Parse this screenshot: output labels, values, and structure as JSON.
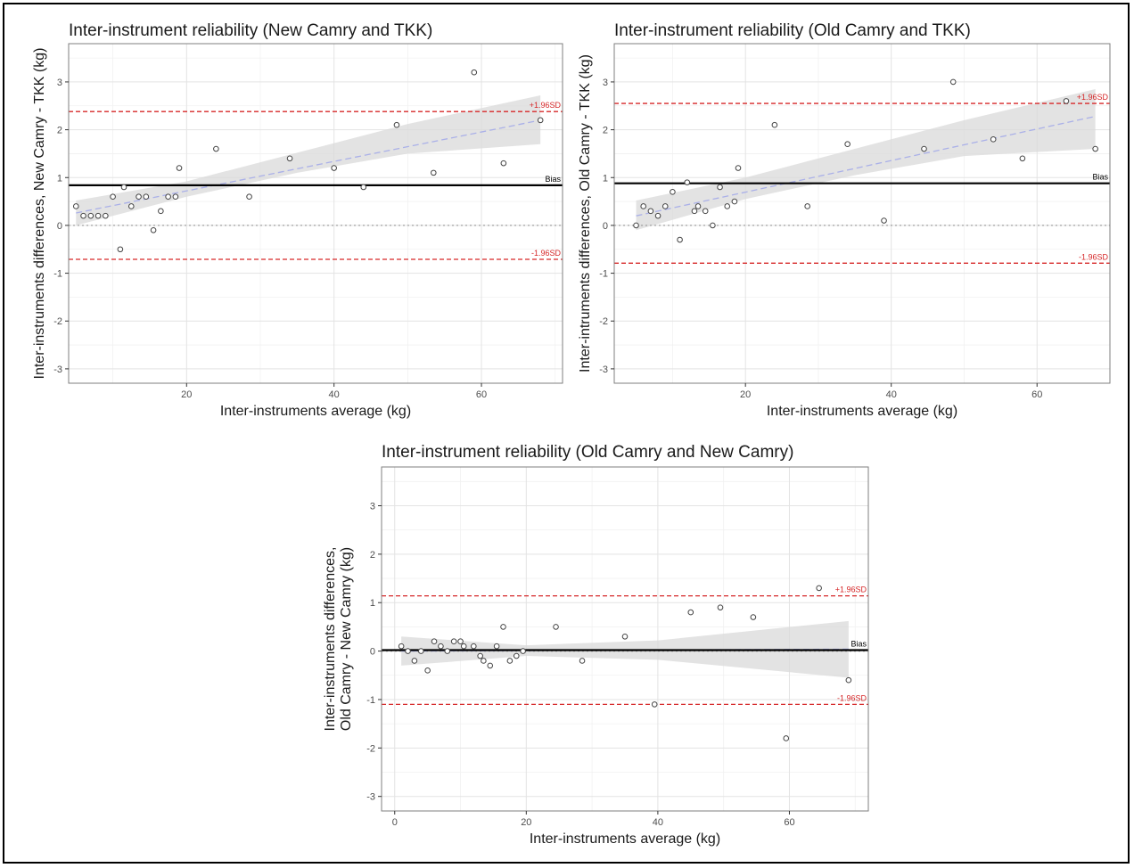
{
  "colors": {
    "limit": "#d62728",
    "bias": "#000000",
    "zero": "#999999",
    "trend": "#aab0e8",
    "band": "#d9d9d9",
    "point": "#444444",
    "grid_major": "#e3e3e3",
    "grid_minor": "#f1f1f1",
    "panel_border": "#7f7f7f"
  },
  "chart_data": [
    {
      "type": "scatter",
      "title": "Inter-instrument reliability (New Camry and TKK)",
      "xlabel": "Inter-instruments average (kg)",
      "ylabel": [
        "Inter-instruments differences, New Camry - TKK (kg)"
      ],
      "xlim": [
        4,
        71
      ],
      "ylim": [
        -3.3,
        3.8
      ],
      "xticks": [
        20,
        40,
        60
      ],
      "yticks": [
        -3,
        -2,
        -1,
        0,
        1,
        2,
        3
      ],
      "bias": 0.84,
      "upper_loa": 2.38,
      "lower_loa": -0.71,
      "bias_label": "Bias",
      "upper_label": "+1.96SD",
      "lower_label": "-1.96SD",
      "trend": {
        "x": [
          5,
          68
        ],
        "y": [
          0.26,
          2.2
        ]
      },
      "band": {
        "x": [
          5,
          20,
          35,
          50,
          68
        ],
        "upper": [
          0.52,
          0.92,
          1.52,
          2.12,
          2.72
        ],
        "lower": [
          0.0,
          0.6,
          1.1,
          1.5,
          1.7
        ]
      },
      "x": [
        5,
        6,
        7,
        8,
        9,
        10,
        11,
        11.5,
        12.5,
        13.5,
        14.5,
        15.5,
        16.5,
        17.5,
        18.5,
        19,
        24,
        28.5,
        34,
        40,
        44,
        48.5,
        53.5,
        59,
        63,
        68
      ],
      "y": [
        0.4,
        0.2,
        0.2,
        0.2,
        0.2,
        0.6,
        -0.5,
        0.8,
        0.4,
        0.6,
        0.6,
        -0.1,
        0.3,
        0.6,
        0.6,
        1.2,
        1.6,
        0.6,
        1.4,
        1.2,
        0.8,
        2.1,
        1.1,
        3.2,
        1.3,
        2.2
      ]
    },
    {
      "type": "scatter",
      "title": "Inter-instrument reliability (Old Camry and TKK)",
      "xlabel": "Inter-instruments average (kg)",
      "ylabel": [
        "Inter-intruments differences, Old Camry - TKK (kg)"
      ],
      "xlim": [
        2,
        70
      ],
      "ylim": [
        -3.3,
        3.8
      ],
      "xticks": [
        20,
        40,
        60
      ],
      "yticks": [
        -3,
        -2,
        -1,
        0,
        1,
        2,
        3
      ],
      "bias": 0.88,
      "upper_loa": 2.55,
      "lower_loa": -0.79,
      "bias_label": "Bias",
      "upper_label": "+1.96SD",
      "lower_label": "-1.96SD",
      "trend": {
        "x": [
          5,
          68
        ],
        "y": [
          0.2,
          2.28
        ]
      },
      "band": {
        "x": [
          5,
          20,
          35,
          50,
          68
        ],
        "upper": [
          0.52,
          1.0,
          1.6,
          2.2,
          2.85
        ],
        "lower": [
          -0.1,
          0.55,
          1.05,
          1.45,
          1.6
        ]
      },
      "x": [
        5,
        6,
        7,
        8,
        9,
        10,
        11,
        12,
        13,
        13.5,
        14.5,
        15.5,
        16.5,
        17.5,
        18.5,
        19,
        24,
        28.5,
        34,
        39,
        44.5,
        48.5,
        54,
        58,
        64,
        68
      ],
      "y": [
        0.0,
        0.4,
        0.3,
        0.2,
        0.4,
        0.7,
        -0.3,
        0.9,
        0.3,
        0.4,
        0.3,
        0.0,
        0.8,
        0.4,
        0.5,
        1.2,
        2.1,
        0.4,
        1.7,
        0.1,
        1.6,
        3.0,
        1.8,
        1.4,
        2.6,
        1.6
      ]
    },
    {
      "type": "scatter",
      "title": "Inter-instrument reliability (Old Camry and New Camry)",
      "xlabel": "Inter-instruments average (kg)",
      "ylabel": [
        "Inter-instruments differences,",
        "Old Camry - New Camry (kg)"
      ],
      "xlim": [
        -2,
        72
      ],
      "ylim": [
        -3.3,
        3.8
      ],
      "xticks": [
        0,
        20,
        40,
        60
      ],
      "yticks": [
        -3,
        -2,
        -1,
        0,
        1,
        2,
        3
      ],
      "bias": 0.02,
      "upper_loa": 1.14,
      "lower_loa": -1.1,
      "bias_label": "Bias",
      "upper_label": "+1.96SD",
      "lower_label": "-1.96SD",
      "trend": {
        "x": [
          1,
          69
        ],
        "y": [
          0.0,
          0.04
        ]
      },
      "band": {
        "x": [
          1,
          20,
          40,
          69
        ],
        "upper": [
          0.3,
          0.12,
          0.22,
          0.62
        ],
        "lower": [
          -0.3,
          -0.1,
          -0.18,
          -0.55
        ]
      },
      "x": [
        1,
        2,
        3,
        4,
        5,
        6,
        7,
        8,
        9,
        10,
        10.5,
        12,
        13,
        13.5,
        14.5,
        15.5,
        16.5,
        17.5,
        18.5,
        19.5,
        24.5,
        28.5,
        35,
        39.5,
        45,
        49.5,
        54.5,
        59.5,
        64.5,
        69
      ],
      "y": [
        0.1,
        0.0,
        -0.2,
        0.0,
        -0.4,
        0.2,
        0.1,
        0.0,
        0.2,
        0.2,
        0.1,
        0.1,
        -0.1,
        -0.2,
        -0.3,
        0.1,
        0.5,
        -0.2,
        -0.1,
        0.0,
        0.5,
        -0.2,
        0.3,
        -1.1,
        0.8,
        0.9,
        0.7,
        -1.8,
        1.3,
        -0.6
      ]
    }
  ]
}
